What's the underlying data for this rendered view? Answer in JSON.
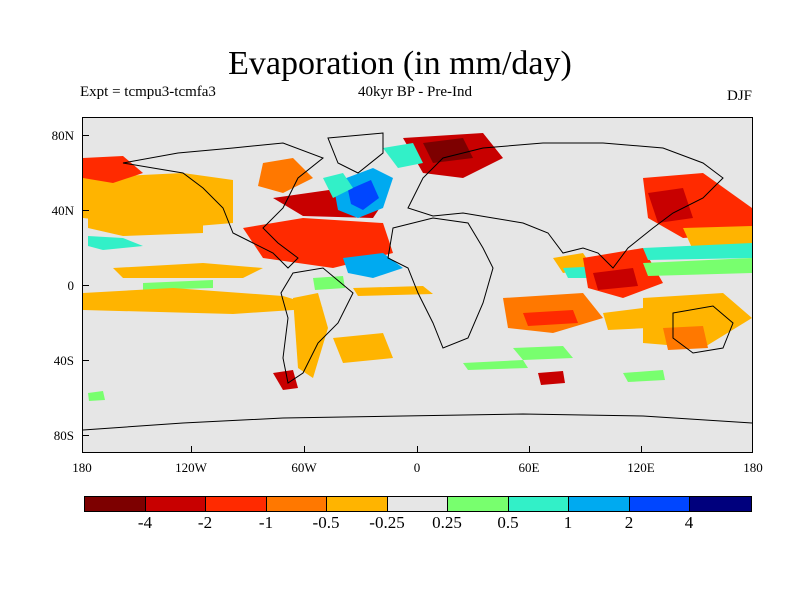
{
  "title": "Evaporation (in mm/day)",
  "expt_label": "Expt = tcmpu3-tcmfa3",
  "period_label": "40kyr BP - Pre-Ind",
  "season_label": "DJF",
  "map": {
    "projection": "cylindrical equidistant",
    "lon_range": [
      -180,
      180
    ],
    "lat_range": [
      -90,
      90
    ],
    "background_color": "#e6e6e6",
    "y_ticks": [
      "80N",
      "40N",
      "0",
      "40S",
      "80S"
    ],
    "x_ticks": [
      "180",
      "120W",
      "60W",
      "0",
      "60E",
      "120E",
      "180"
    ]
  },
  "colorbar": {
    "colors": [
      "#7d0000",
      "#c80000",
      "#ff2a00",
      "#ff7800",
      "#ffb400",
      "#e6e6e6",
      "#78ff6e",
      "#32f0c8",
      "#00aaf0",
      "#0046ff",
      "#00007d"
    ],
    "labels": [
      "-4",
      "-2",
      "-1",
      "-0.5",
      "-0.25",
      "0.25",
      "0.5",
      "1",
      "2",
      "4"
    ]
  }
}
